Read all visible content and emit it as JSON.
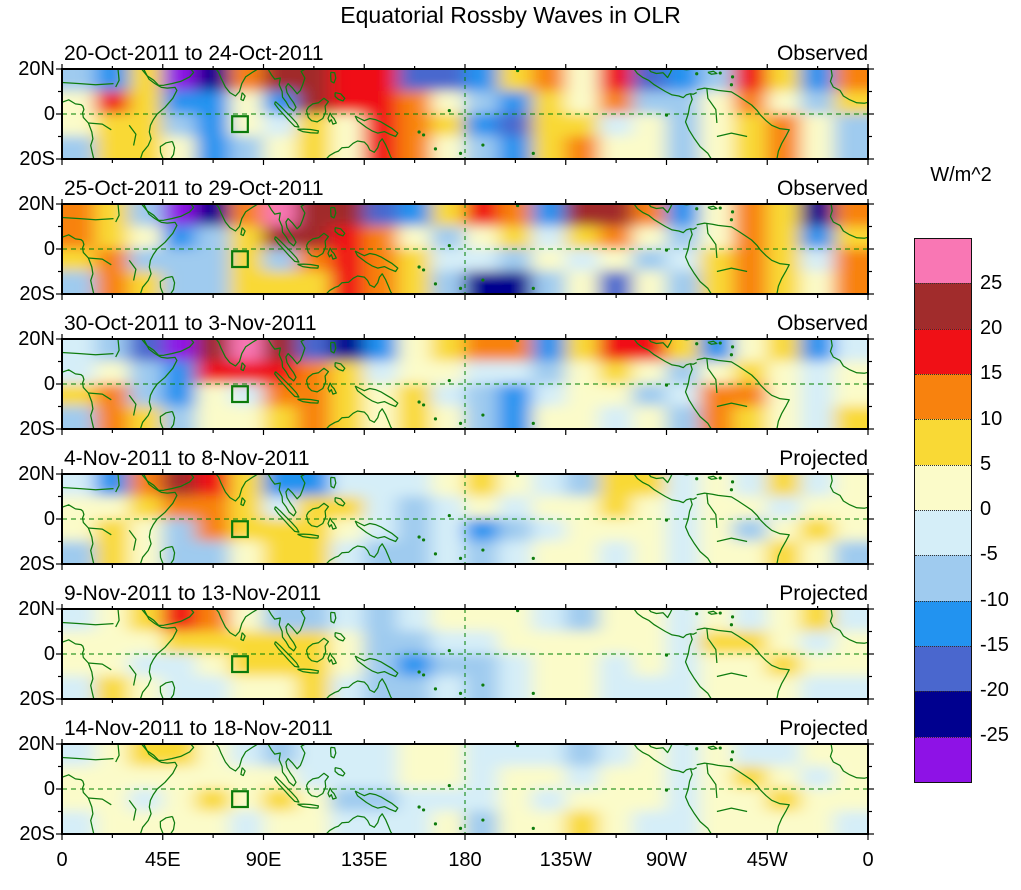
{
  "title": "Equatorial Rossby Waves in OLR",
  "colorbar": {
    "units_label": "W/m^2",
    "tick_labels": [
      "25",
      "20",
      "15",
      "10",
      "5",
      "0",
      "-5",
      "-10",
      "-15",
      "-20",
      "-25"
    ],
    "colors_top_to_bottom": [
      "#F977B4",
      "#A12C2C",
      "#F01016",
      "#F8820E",
      "#F9D935",
      "#FBFBC9",
      "#D5EEF8",
      "#9FCBEF",
      "#2293F0",
      "#4A67CE",
      "#00008F",
      "#8E12E6"
    ]
  },
  "x_axis": {
    "tick_labels": [
      "0",
      "45E",
      "90E",
      "135E",
      "180",
      "135W",
      "90W",
      "45W",
      "0"
    ]
  },
  "y_axis": {
    "tick_labels": [
      "20N",
      "0",
      "20S"
    ]
  },
  "map_style": {
    "coast_color": "#0E7C0E",
    "gridline_color": "#008000",
    "border_color": "#000000"
  },
  "chart_data": {
    "type": "heatmap",
    "title": "Equatorial Rossby Waves in OLR",
    "units": "W/m^2",
    "lon_range": [
      0,
      360
    ],
    "lat_range": [
      -20,
      20
    ],
    "x_tick_labels": [
      "0",
      "45E",
      "90E",
      "135E",
      "180",
      "135W",
      "90W",
      "45W",
      "0"
    ],
    "y_tick_labels": [
      "20N",
      "0",
      "20S"
    ],
    "contour_levels": [
      -25,
      -20,
      -15,
      -10,
      -5,
      0,
      5,
      10,
      15,
      20,
      25
    ],
    "legend_position": "right",
    "grid_lon_step_deg": 15,
    "grid_lat_centers_deg": [
      15,
      5,
      -5,
      -15
    ],
    "annotations": {
      "equator_dashed_line_lat": 0,
      "dateline_dashed_line_lon": 180,
      "region_box": {
        "lon_min": 76,
        "lon_max": 83,
        "lat_min": -8,
        "lat_max": -1
      }
    },
    "panels": [
      {
        "label": "20-Oct-2011 to 24-Oct-2011",
        "status": "Observed",
        "olr_anomaly_grid": [
          [
            -7,
            -12,
            7,
            -28,
            -22,
            12,
            22,
            22,
            17,
            17,
            -17,
            -17,
            -12,
            7,
            12,
            2,
            17,
            -17,
            -12,
            -7,
            17,
            7,
            -12,
            12
          ],
          [
            2,
            17,
            7,
            -12,
            -12,
            2,
            -12,
            22,
            17,
            17,
            12,
            2,
            -7,
            -12,
            7,
            2,
            12,
            -7,
            -7,
            2,
            12,
            2,
            -7,
            7
          ],
          [
            2,
            7,
            7,
            -7,
            -12,
            2,
            -2,
            7,
            2,
            17,
            12,
            7,
            -12,
            -17,
            7,
            7,
            -2,
            2,
            -7,
            2,
            7,
            12,
            2,
            -7
          ],
          [
            -7,
            7,
            7,
            2,
            -12,
            -7,
            2,
            7,
            2,
            17,
            12,
            2,
            -7,
            -12,
            7,
            12,
            2,
            2,
            -7,
            2,
            7,
            12,
            2,
            -7
          ]
        ]
      },
      {
        "label": "25-Oct-2011 to 29-Oct-2011",
        "status": "Observed",
        "olr_anomaly_grid": [
          [
            12,
            7,
            -7,
            -28,
            -22,
            12,
            28,
            22,
            22,
            -17,
            -12,
            7,
            17,
            12,
            -12,
            22,
            22,
            12,
            -12,
            2,
            12,
            7,
            -22,
            12
          ],
          [
            12,
            7,
            2,
            -12,
            -7,
            7,
            22,
            22,
            17,
            12,
            2,
            -7,
            2,
            7,
            -2,
            7,
            12,
            2,
            -7,
            2,
            12,
            7,
            -12,
            7
          ],
          [
            7,
            12,
            -7,
            -7,
            -7,
            7,
            -7,
            12,
            17,
            12,
            7,
            -2,
            -2,
            -7,
            2,
            -2,
            2,
            -7,
            -2,
            7,
            12,
            7,
            -2,
            12
          ],
          [
            -7,
            12,
            7,
            -7,
            -7,
            7,
            7,
            7,
            17,
            12,
            7,
            -7,
            -22,
            -22,
            -7,
            2,
            -17,
            2,
            -7,
            7,
            12,
            7,
            2,
            12
          ]
        ]
      },
      {
        "label": "30-Oct-2011 to 3-Nov-2011",
        "status": "Observed",
        "olr_anomaly_grid": [
          [
            -2,
            -7,
            -17,
            -28,
            22,
            28,
            22,
            -17,
            -22,
            -12,
            2,
            7,
            12,
            12,
            -12,
            7,
            17,
            17,
            7,
            -12,
            2,
            7,
            -12,
            -2
          ],
          [
            -2,
            2,
            -7,
            -12,
            17,
            17,
            17,
            12,
            7,
            -2,
            2,
            2,
            -2,
            -2,
            -7,
            2,
            7,
            2,
            -7,
            2,
            7,
            2,
            -2,
            2
          ],
          [
            7,
            12,
            -7,
            -12,
            2,
            -2,
            12,
            12,
            7,
            2,
            7,
            -2,
            -7,
            -12,
            -2,
            2,
            2,
            -7,
            -2,
            12,
            12,
            2,
            -2,
            2
          ],
          [
            -7,
            12,
            7,
            -7,
            2,
            2,
            7,
            12,
            7,
            2,
            7,
            2,
            -7,
            -12,
            2,
            2,
            -2,
            2,
            -7,
            12,
            7,
            2,
            -2,
            7
          ]
        ]
      },
      {
        "label": "4-Nov-2011 to 8-Nov-2011",
        "status": "Projected",
        "olr_anomaly_grid": [
          [
            -2,
            -12,
            12,
            22,
            17,
            7,
            -12,
            -12,
            -2,
            -2,
            -2,
            2,
            7,
            2,
            -2,
            -7,
            7,
            7,
            -2,
            2,
            -2,
            7,
            -2,
            2
          ],
          [
            2,
            2,
            7,
            12,
            12,
            7,
            -2,
            7,
            7,
            -2,
            -7,
            -2,
            2,
            -2,
            2,
            2,
            7,
            2,
            -2,
            2,
            2,
            -2,
            2,
            2
          ],
          [
            2,
            7,
            2,
            -7,
            12,
            7,
            7,
            7,
            2,
            -2,
            -7,
            -2,
            -12,
            -7,
            -2,
            2,
            2,
            2,
            -2,
            2,
            -7,
            2,
            7,
            2
          ],
          [
            -7,
            7,
            2,
            -7,
            -7,
            2,
            7,
            7,
            -2,
            -7,
            -7,
            -2,
            -7,
            -2,
            2,
            2,
            -2,
            2,
            -2,
            2,
            2,
            7,
            2,
            -7
          ]
        ]
      },
      {
        "label": "9-Nov-2011 to 13-Nov-2011",
        "status": "Projected",
        "olr_anomaly_grid": [
          [
            -2,
            2,
            7,
            17,
            12,
            2,
            -7,
            -7,
            -2,
            -7,
            -2,
            2,
            2,
            2,
            -2,
            -7,
            2,
            2,
            -2,
            2,
            -2,
            2,
            7,
            -2
          ],
          [
            2,
            2,
            2,
            7,
            7,
            7,
            7,
            7,
            2,
            -7,
            -7,
            -2,
            -2,
            2,
            2,
            2,
            2,
            2,
            -2,
            7,
            7,
            2,
            -2,
            2
          ],
          [
            2,
            2,
            -2,
            -2,
            2,
            7,
            7,
            7,
            2,
            -7,
            -12,
            -7,
            -7,
            -2,
            2,
            2,
            -2,
            2,
            -2,
            2,
            2,
            7,
            2,
            2
          ],
          [
            -2,
            7,
            2,
            -2,
            -2,
            2,
            2,
            7,
            -2,
            -7,
            -7,
            -2,
            -7,
            -2,
            2,
            2,
            -2,
            -2,
            -2,
            2,
            2,
            2,
            -2,
            -2
          ]
        ]
      },
      {
        "label": "14-Nov-2011 to 18-Nov-2011",
        "status": "Projected",
        "olr_anomaly_grid": [
          [
            -2,
            2,
            7,
            7,
            2,
            -2,
            -7,
            -2,
            -2,
            -2,
            2,
            2,
            -2,
            -2,
            -2,
            -7,
            -2,
            2,
            -2,
            2,
            -2,
            -2,
            2,
            2
          ],
          [
            2,
            2,
            2,
            2,
            2,
            2,
            2,
            -2,
            -2,
            -2,
            2,
            2,
            -2,
            2,
            2,
            -2,
            2,
            2,
            -2,
            2,
            7,
            2,
            -2,
            2
          ],
          [
            2,
            2,
            -2,
            2,
            7,
            2,
            7,
            2,
            -7,
            -7,
            -2,
            -2,
            -2,
            2,
            -2,
            2,
            2,
            2,
            -2,
            2,
            2,
            7,
            2,
            2
          ],
          [
            -2,
            2,
            2,
            2,
            2,
            -2,
            2,
            2,
            -2,
            -2,
            -2,
            2,
            -7,
            2,
            2,
            7,
            2,
            -2,
            -2,
            2,
            2,
            2,
            2,
            -2
          ]
        ]
      }
    ]
  }
}
